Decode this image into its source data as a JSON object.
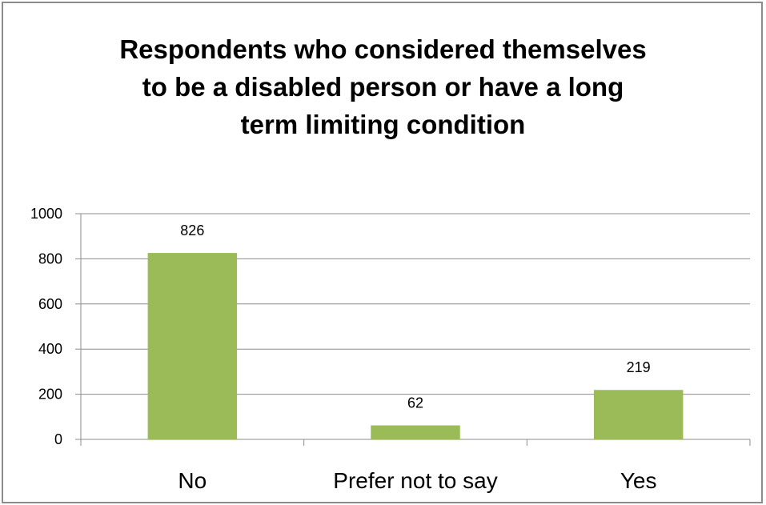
{
  "chart_data": {
    "type": "bar",
    "title_lines": [
      "Respondents who considered themselves",
      "to be a disabled person or have a long",
      "term limiting condition"
    ],
    "categories": [
      "No",
      "Prefer not to say",
      "Yes"
    ],
    "values": [
      826,
      62,
      219
    ],
    "data_labels": [
      "826",
      "62",
      "219"
    ],
    "ylim": [
      0,
      1000
    ],
    "yticks": [
      0,
      200,
      400,
      600,
      800,
      1000
    ],
    "grid": true,
    "legend": "none",
    "bar_color": "#9bbb59"
  }
}
